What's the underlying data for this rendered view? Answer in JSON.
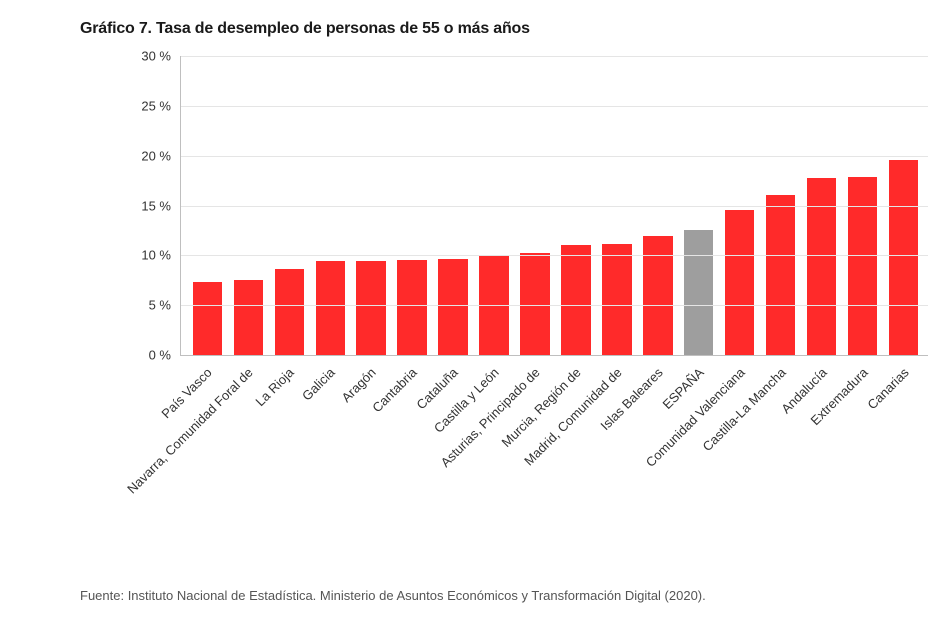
{
  "title": "Gráfico 7. Tasa de desempleo de personas de 55 o más años",
  "source": "Fuente: Instituto Nacional de Estadística. Ministerio de Asuntos Económicos y Transformación Digital (2020).",
  "chart": {
    "type": "bar",
    "ylim": [
      0,
      30
    ],
    "ytick_step": 5,
    "ytick_suffix": " %",
    "title_fontsize": 16,
    "ytick_fontsize": 13,
    "xlabel_fontsize": 13,
    "source_fontsize": 13,
    "background_color": "#ffffff",
    "grid_color": "#e5e5e5",
    "axis_color": "#bfbfbf",
    "text_color": "#333333",
    "bar_width_ratio": 0.72,
    "default_bar_color": "#ff2a2a",
    "highlight_bar_color": "#9e9e9e",
    "categories": [
      "País Vasco",
      "Navarra, Comunidad Foral de",
      "La Rioja",
      "Galicia",
      "Aragón",
      "Cantabria",
      "Cataluña",
      "Castilla y León",
      "Asturias, Principado de",
      "Murcia, Región de",
      "Madrid, Comunidad de",
      "Islas Baleares",
      "ESPAÑA",
      "Comunidad Valenciana",
      "Castilla-La Mancha",
      "Andalucía",
      "Extremadura",
      "Canarias"
    ],
    "values": [
      7.3,
      7.5,
      8.6,
      9.4,
      9.4,
      9.5,
      9.6,
      10.0,
      10.2,
      11.0,
      11.1,
      11.9,
      12.5,
      14.6,
      16.1,
      17.8,
      17.9,
      19.6
    ],
    "highlight_index": 12
  }
}
